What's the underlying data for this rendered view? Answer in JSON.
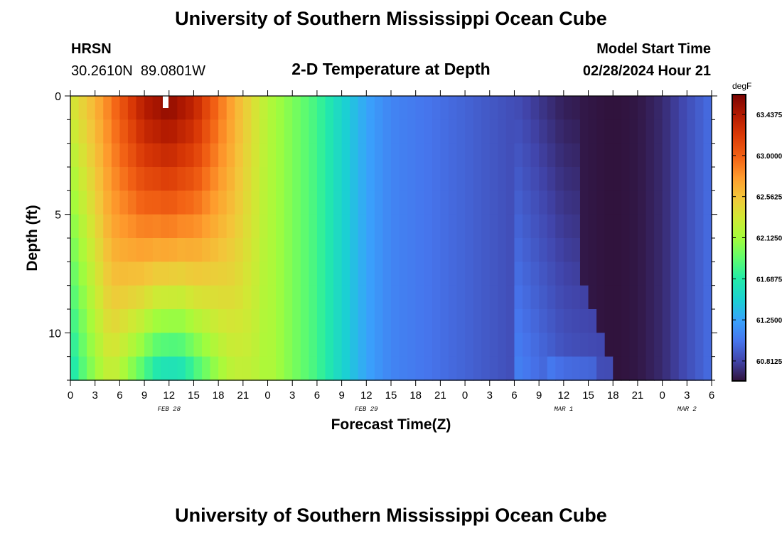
{
  "header": {
    "title": "University of Southern Mississippi Ocean Cube",
    "station_code": "HRSN",
    "station_coords": "30.2610N  89.0801W",
    "plot_title": "2-D Temperature at Depth",
    "model_start_label": "Model Start Time",
    "model_start_value": "02/28/2024 Hour 21"
  },
  "footer": {
    "title": "University of Southern Mississippi Ocean Cube"
  },
  "chart_data": {
    "type": "heatmap",
    "title": "2-D Temperature at Depth",
    "xlabel": "Forecast Time(Z)",
    "ylabel": "Depth (ft)",
    "x_tick_labels": [
      "0",
      "3",
      "6",
      "9",
      "12",
      "15",
      "18",
      "21",
      "0",
      "3",
      "6",
      "9",
      "12",
      "15",
      "18",
      "21",
      "0",
      "3",
      "6",
      "9",
      "12",
      "15",
      "18",
      "21",
      "0",
      "3",
      "6"
    ],
    "x_range_hours": [
      0,
      78
    ],
    "date_labels": [
      {
        "label": "FEB 28",
        "hour": 12
      },
      {
        "label": "FEB 29",
        "hour": 36
      },
      {
        "label": "MAR 1",
        "hour": 60
      },
      {
        "label": "MAR 2",
        "hour": 75
      }
    ],
    "y_tick_labels": [
      "0",
      "5",
      "10"
    ],
    "y_range_ft": [
      0,
      12
    ],
    "colorbar": {
      "unit": "degF",
      "min": 60.6,
      "max": 63.65,
      "tick_values": [
        63.4375,
        63.0,
        62.5625,
        62.125,
        61.6875,
        61.25,
        60.8125
      ],
      "tick_labels": [
        "63.4375",
        "63.0000",
        "62.5625",
        "62.1250",
        "61.6875",
        "61.2500",
        "60.8125"
      ]
    },
    "depths_ft": [
      0,
      1,
      2,
      3,
      4,
      5,
      6,
      7,
      8,
      9,
      10,
      11,
      12
    ],
    "surface_profile": {
      "hours": [
        0,
        3,
        6,
        9,
        12,
        15,
        18,
        21,
        24,
        27,
        30,
        33,
        36,
        39,
        42,
        45,
        48,
        51,
        54,
        57,
        60,
        63,
        66,
        69,
        72,
        75,
        78
      ],
      "values": [
        62.35,
        62.65,
        63.05,
        63.45,
        63.6,
        63.4,
        62.95,
        62.55,
        62.2,
        62.0,
        61.8,
        61.5,
        61.25,
        61.1,
        61.05,
        61.0,
        60.95,
        60.9,
        60.85,
        60.75,
        60.65,
        60.62,
        60.6,
        60.62,
        60.7,
        60.85,
        61.0
      ]
    },
    "grid": false
  }
}
